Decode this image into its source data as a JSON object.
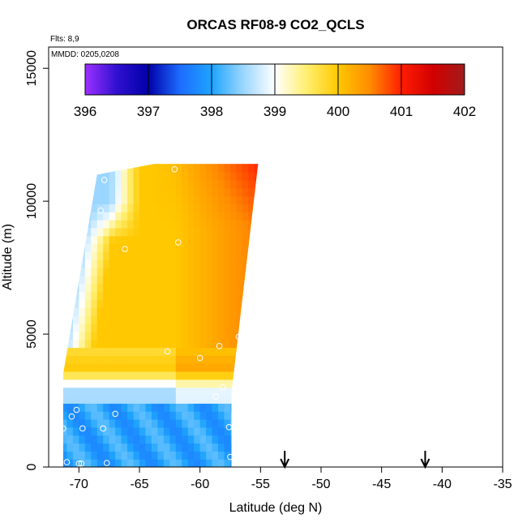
{
  "chart_data": {
    "type": "heatmap",
    "title": "ORCAS RF08-9 CO2_QCLS",
    "annotations": {
      "flights": "Flts: 8,9",
      "dates": "MMDD: 0205,0208"
    },
    "xlabel": "Latitude (deg N)",
    "ylabel": "Altitude (m)",
    "xlim": [
      -72.5,
      -35
    ],
    "ylim": [
      0,
      15800
    ],
    "x_ticks": [
      -70,
      -65,
      -60,
      -55,
      -50,
      -45,
      -40,
      -35
    ],
    "x_tick_labels": [
      "-70",
      "-65",
      "-60",
      "-55",
      "-50",
      "-45",
      "-40",
      "-35"
    ],
    "y_ticks": [
      0,
      5000,
      10000,
      15000
    ],
    "y_tick_labels": [
      "0",
      "5000",
      "10000",
      "15000"
    ],
    "colorbar": {
      "range": [
        396,
        402
      ],
      "ticks": [
        396,
        397,
        398,
        399,
        400,
        401,
        402
      ],
      "tick_labels": [
        "396",
        "397",
        "398",
        "399",
        "400",
        "401",
        "402"
      ],
      "stops": [
        {
          "value": 396.0,
          "color": "#9c30ff"
        },
        {
          "value": 396.5,
          "color": "#3010d0"
        },
        {
          "value": 397.0,
          "color": "#0000a8"
        },
        {
          "value": 397.5,
          "color": "#1c6cff"
        },
        {
          "value": 398.0,
          "color": "#1ea4ff"
        },
        {
          "value": 398.5,
          "color": "#9ad6ff"
        },
        {
          "value": 399.0,
          "color": "#ffffff"
        },
        {
          "value": 399.5,
          "color": "#ffef70"
        },
        {
          "value": 400.0,
          "color": "#ffc800"
        },
        {
          "value": 400.5,
          "color": "#ff8c00"
        },
        {
          "value": 401.0,
          "color": "#ff1e00"
        },
        {
          "value": 401.5,
          "color": "#d20000"
        },
        {
          "value": 402.0,
          "color": "#a01c1c"
        }
      ]
    },
    "field": {
      "description": "Interpolated CO2 (ppm) curtain between the aircraft profiles",
      "domain_lat_alt": [
        [
          -71.3,
          0
        ],
        [
          -57.4,
          0
        ],
        [
          -57.4,
          2800
        ],
        [
          -55.2,
          11400
        ],
        [
          -63.8,
          11400
        ],
        [
          -68.5,
          11000
        ],
        [
          -71.3,
          3500
        ]
      ],
      "low_band": {
        "alt_range": [
          0,
          2300
        ],
        "value": 398.0
      },
      "mid_gradient": {
        "alt_range": [
          2300,
          4500
        ],
        "value_range": [
          398.5,
          400.2
        ]
      },
      "upper_core": {
        "alt_range": [
          4500,
          11400
        ],
        "value": 400.0,
        "east_edge_value": 400.6
      },
      "south_high_altitude": {
        "lat_range": [
          -71.0,
          -65.0
        ],
        "alt_range": [
          8500,
          11000
        ],
        "value": 398.5
      }
    },
    "sample_points": [
      {
        "lat": -71.3,
        "alt": 1450
      },
      {
        "lat": -70.6,
        "alt": 1900
      },
      {
        "lat": -70.2,
        "alt": 2150
      },
      {
        "lat": -71.0,
        "alt": 180
      },
      {
        "lat": -70.0,
        "alt": 130
      },
      {
        "lat": -69.8,
        "alt": 130
      },
      {
        "lat": -69.7,
        "alt": 1450
      },
      {
        "lat": -68.0,
        "alt": 1450
      },
      {
        "lat": -67.0,
        "alt": 2000
      },
      {
        "lat": -67.7,
        "alt": 150
      },
      {
        "lat": -57.5,
        "alt": 380
      },
      {
        "lat": -57.6,
        "alt": 1500
      },
      {
        "lat": -58.7,
        "alt": 2650
      },
      {
        "lat": -58.1,
        "alt": 3000
      },
      {
        "lat": -56.5,
        "alt": 3300
      },
      {
        "lat": -60.0,
        "alt": 4100
      },
      {
        "lat": -62.7,
        "alt": 4350
      },
      {
        "lat": -58.4,
        "alt": 4550
      },
      {
        "lat": -56.8,
        "alt": 4900
      },
      {
        "lat": -66.2,
        "alt": 8200
      },
      {
        "lat": -61.8,
        "alt": 8450
      },
      {
        "lat": -68.2,
        "alt": 9650
      },
      {
        "lat": -67.9,
        "alt": 10800
      },
      {
        "lat": -62.1,
        "alt": 11200
      }
    ],
    "arrows": [
      {
        "lat": -53.0,
        "label": "down-arrow"
      },
      {
        "lat": -41.4,
        "label": "down-arrow"
      }
    ]
  }
}
